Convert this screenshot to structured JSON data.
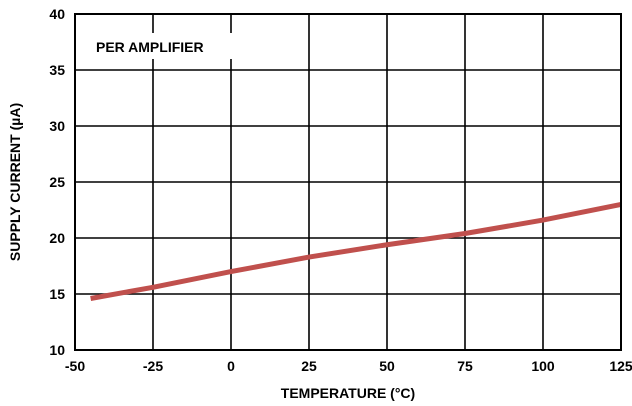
{
  "chart_data": {
    "type": "line",
    "xlabel": "TEMPERATURE (°C)",
    "ylabel": "SUPPLY CURRENT (µA)",
    "annotation": "PER AMPLIFIER",
    "xlim": [
      -50,
      125
    ],
    "ylim": [
      10,
      40
    ],
    "xticks": [
      -50,
      -25,
      0,
      25,
      50,
      75,
      100,
      125
    ],
    "yticks": [
      10,
      15,
      20,
      25,
      30,
      35,
      40
    ],
    "xtick_labels": [
      "-50",
      "-25",
      "0",
      "25",
      "50",
      "75",
      "100",
      "125"
    ],
    "ytick_labels": [
      "10",
      "15",
      "20",
      "25",
      "30",
      "35",
      "40"
    ],
    "grid": true,
    "series": [
      {
        "color": "#c0504d",
        "x": [
          -45,
          -25,
          0,
          25,
          50,
          75,
          100,
          125
        ],
        "y": [
          14.6,
          15.6,
          17.0,
          18.3,
          19.4,
          20.4,
          21.6,
          23.0
        ]
      }
    ]
  }
}
